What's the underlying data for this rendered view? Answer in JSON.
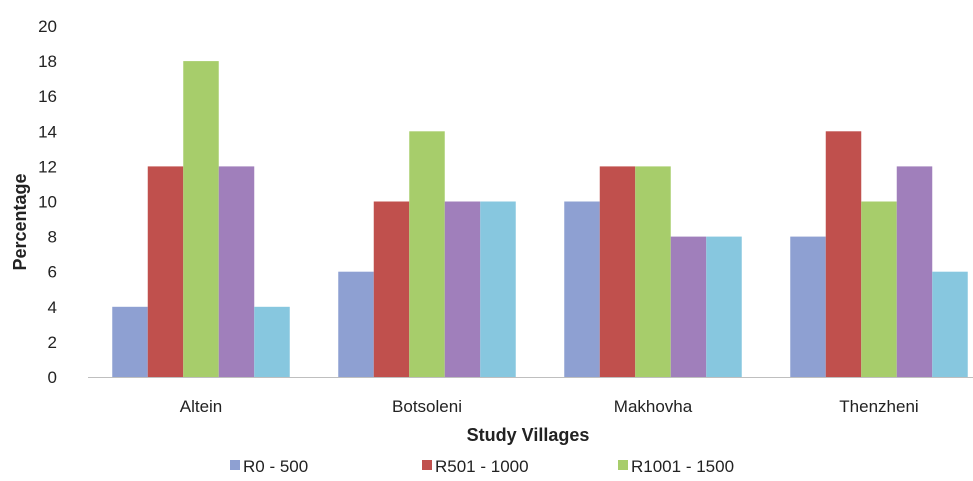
{
  "chart_data": {
    "type": "bar",
    "title": "",
    "xlabel": "Study Villages",
    "ylabel": "Percentage",
    "ylim": [
      0,
      20
    ],
    "yticks": [
      "0",
      "2",
      "4",
      "6",
      "8",
      "10",
      "12",
      "14",
      "16",
      "18",
      "20"
    ],
    "grid": false,
    "legend_position": "bottom",
    "categories": [
      "Altein",
      "Botsoleni",
      "Makhovha",
      "Thenzheni"
    ],
    "series": [
      {
        "name": "R0 - 500",
        "color": "#8ea0d2",
        "values": [
          4,
          6,
          10,
          8
        ]
      },
      {
        "name": "R501 - 1000",
        "color": "#c0504d",
        "values": [
          12,
          10,
          12,
          14
        ]
      },
      {
        "name": "R1001 - 1500",
        "color": "#a7cd6b",
        "values": [
          18,
          14,
          12,
          10
        ]
      },
      {
        "color": "#a07fbb",
        "values": [
          12,
          10,
          8,
          12
        ]
      },
      {
        "color": "#87c7df",
        "values": [
          4,
          10,
          8,
          6
        ]
      }
    ]
  }
}
